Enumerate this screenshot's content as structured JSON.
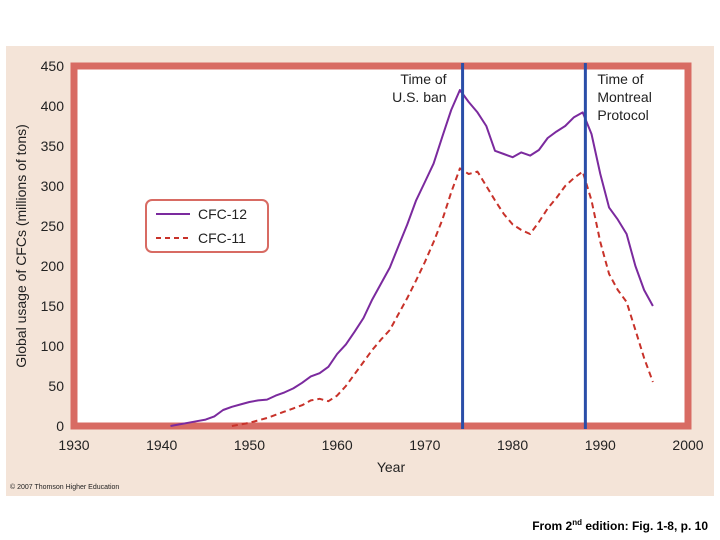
{
  "chart_data": {
    "type": "line",
    "title": "",
    "xlabel": "Year",
    "ylabel": "Global usage of CFCs (millions of tons)",
    "xlim": [
      1930,
      2000
    ],
    "ylim": [
      0,
      450
    ],
    "xticks": [
      1930,
      1940,
      1950,
      1960,
      1970,
      1980,
      1990,
      2000
    ],
    "yticks": [
      0,
      50,
      100,
      150,
      200,
      250,
      300,
      350,
      400,
      450
    ],
    "legend_position": "left-middle",
    "series": [
      {
        "name": "CFC-12",
        "style": "solid",
        "color": "#7b2a9e",
        "points": [
          [
            1941,
            0
          ],
          [
            1942,
            2
          ],
          [
            1943,
            4
          ],
          [
            1944,
            6
          ],
          [
            1945,
            8
          ],
          [
            1946,
            12
          ],
          [
            1947,
            20
          ],
          [
            1948,
            24
          ],
          [
            1949,
            27
          ],
          [
            1950,
            30
          ],
          [
            1951,
            32
          ],
          [
            1952,
            33
          ],
          [
            1953,
            38
          ],
          [
            1954,
            42
          ],
          [
            1955,
            47
          ],
          [
            1956,
            54
          ],
          [
            1957,
            62
          ],
          [
            1958,
            66
          ],
          [
            1959,
            74
          ],
          [
            1960,
            90
          ],
          [
            1961,
            102
          ],
          [
            1962,
            118
          ],
          [
            1963,
            135
          ],
          [
            1964,
            158
          ],
          [
            1965,
            178
          ],
          [
            1966,
            198
          ],
          [
            1967,
            225
          ],
          [
            1968,
            252
          ],
          [
            1969,
            282
          ],
          [
            1970,
            305
          ],
          [
            1971,
            328
          ],
          [
            1972,
            362
          ],
          [
            1973,
            395
          ],
          [
            1974,
            420
          ],
          [
            1975,
            405
          ],
          [
            1976,
            392
          ],
          [
            1977,
            375
          ],
          [
            1978,
            344
          ],
          [
            1979,
            340
          ],
          [
            1980,
            336
          ],
          [
            1981,
            342
          ],
          [
            1982,
            338
          ],
          [
            1983,
            345
          ],
          [
            1984,
            360
          ],
          [
            1985,
            368
          ],
          [
            1986,
            375
          ],
          [
            1987,
            386
          ],
          [
            1988,
            392
          ],
          [
            1989,
            365
          ],
          [
            1990,
            315
          ],
          [
            1991,
            273
          ],
          [
            1992,
            258
          ],
          [
            1993,
            240
          ],
          [
            1994,
            200
          ],
          [
            1995,
            170
          ],
          [
            1996,
            150
          ]
        ]
      },
      {
        "name": "CFC-11",
        "style": "dashed",
        "color": "#c8322a",
        "points": [
          [
            1948,
            0
          ],
          [
            1949,
            2
          ],
          [
            1950,
            4
          ],
          [
            1951,
            7
          ],
          [
            1952,
            10
          ],
          [
            1953,
            14
          ],
          [
            1954,
            18
          ],
          [
            1955,
            22
          ],
          [
            1956,
            26
          ],
          [
            1957,
            32
          ],
          [
            1958,
            34
          ],
          [
            1959,
            31
          ],
          [
            1960,
            38
          ],
          [
            1961,
            50
          ],
          [
            1962,
            65
          ],
          [
            1963,
            80
          ],
          [
            1964,
            95
          ],
          [
            1965,
            108
          ],
          [
            1966,
            120
          ],
          [
            1967,
            140
          ],
          [
            1968,
            160
          ],
          [
            1969,
            182
          ],
          [
            1970,
            205
          ],
          [
            1971,
            230
          ],
          [
            1972,
            258
          ],
          [
            1973,
            292
          ],
          [
            1974,
            322
          ],
          [
            1975,
            315
          ],
          [
            1976,
            318
          ],
          [
            1977,
            300
          ],
          [
            1978,
            282
          ],
          [
            1979,
            265
          ],
          [
            1980,
            252
          ],
          [
            1981,
            245
          ],
          [
            1982,
            240
          ],
          [
            1983,
            255
          ],
          [
            1984,
            272
          ],
          [
            1985,
            285
          ],
          [
            1986,
            300
          ],
          [
            1987,
            310
          ],
          [
            1988,
            318
          ],
          [
            1989,
            282
          ],
          [
            1990,
            230
          ],
          [
            1991,
            190
          ],
          [
            1992,
            170
          ],
          [
            1993,
            155
          ],
          [
            1994,
            120
          ],
          [
            1995,
            85
          ],
          [
            1996,
            55
          ]
        ]
      }
    ],
    "annotations": [
      {
        "year": 1974.3,
        "label_lines": [
          "Time of",
          "U.S. ban"
        ]
      },
      {
        "year": 1988.3,
        "label_lines": [
          "Time of",
          "Montreal",
          "Protocol"
        ]
      }
    ]
  },
  "copyright": "© 2007 Thomson Higher Education",
  "caption": {
    "prefix": "From 2",
    "sup": "nd",
    "suffix": " edition: Fig. 1-8, p. 10"
  },
  "colors": {
    "plot_border": "#d86b63",
    "background": "#f4e4d8",
    "event_line": "#2a4ea8"
  }
}
